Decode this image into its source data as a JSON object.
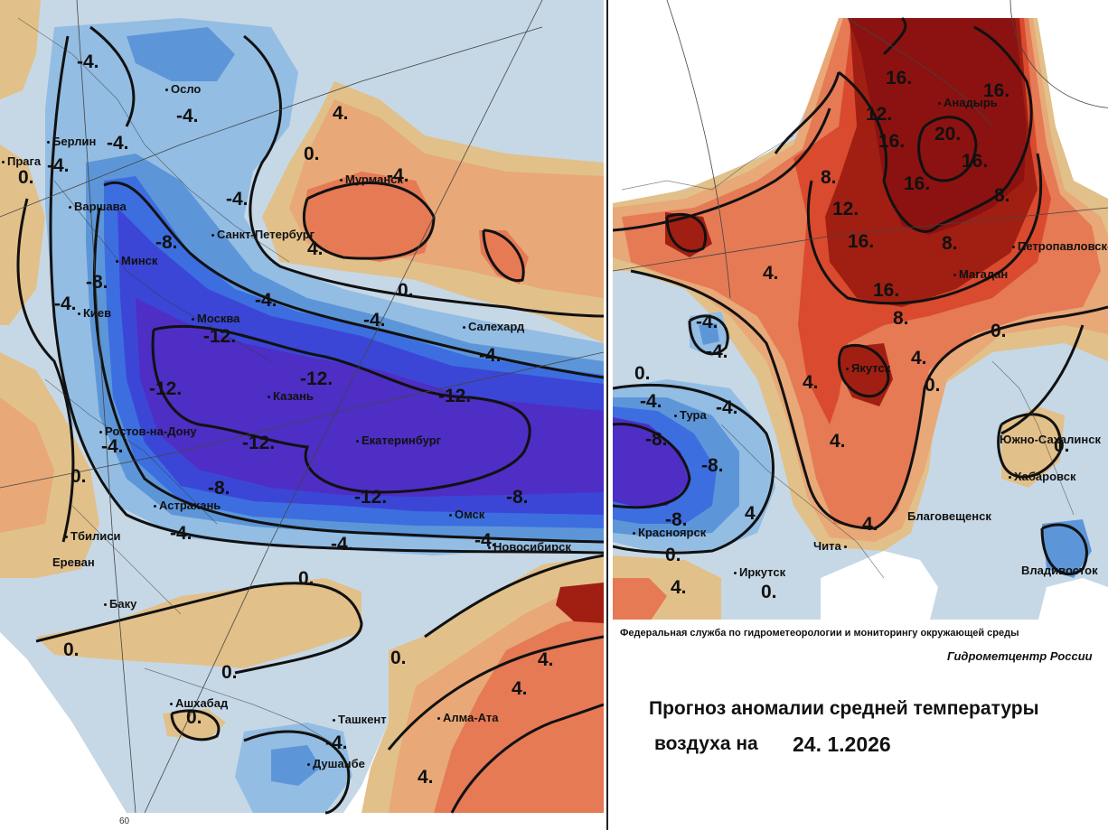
{
  "colors": {
    "neg12": "#4e2ec4",
    "neg10": "#3b46d6",
    "neg8": "#3d6ee0",
    "neg6": "#5d96d8",
    "neg4": "#93bde3",
    "neg2": "#c6d8e6",
    "pos0": "#e2c08a",
    "pos2": "#e8a877",
    "pos4": "#e57a55",
    "pos8": "#d94a2e",
    "pos12": "#a01f12",
    "pos16": "#8b1210"
  },
  "left_map": {
    "cities": [
      "Осло",
      "Берлин",
      "Прага",
      "Варшава",
      "Минск",
      "Киев",
      "Москва",
      "Санкт-Петербург",
      "Мурманск",
      "Салехард",
      "Казань",
      "Екатеринбург",
      "Ростов-на-Дону",
      "Астрахань",
      "Тбилиси",
      "Ереван",
      "Баку",
      "Омск",
      "Новосибирск",
      "Ашхабад",
      "Ташкент",
      "Душанбе",
      "Алма-Ата"
    ],
    "isolines": [
      "-4.",
      "-4.",
      "-4.",
      "-4.",
      "0.",
      "-4.",
      "-8.",
      "-8.",
      "-4.",
      "-12.",
      "-12.",
      "-12.",
      "-12.",
      "-12.",
      "-12.",
      "-8.",
      "-8.",
      "-4.",
      "-4.",
      "-4.",
      "-4.",
      "0.",
      "0.",
      "0.",
      "0.",
      "0.",
      "0.",
      "-4.",
      "4.",
      "4.",
      "4.",
      "4.",
      "0.",
      "4.",
      "0.",
      "-4.",
      "-4.",
      "-4.",
      "-4."
    ],
    "longitude_label": "60"
  },
  "right_map": {
    "cities": [
      "Анадырь",
      "Магадан",
      "Петропавловск-Камчатский",
      "Якутск",
      "Тура",
      "Красноярск",
      "Чита",
      "Иркутск",
      "Благовещенск",
      "Хабаровск",
      "Южно-Сахалинск",
      "Владивосток"
    ],
    "isolines": [
      "16.",
      "16.",
      "12.",
      "20.",
      "16.",
      "16.",
      "16.",
      "8.",
      "12.",
      "8.",
      "16.",
      "16.",
      "8.",
      "8.",
      "4.",
      "4.",
      "-8.",
      "0.",
      "-4.",
      "-4.",
      "4.",
      "0.",
      "-4.",
      "-4.",
      "-8.",
      "-8.",
      "4.",
      "4.",
      "4.",
      "0.",
      "0.",
      "4.",
      "0.",
      "0."
    ]
  },
  "footer": {
    "agency": "Федеральная служба по гидрометеорологии и мониторингу окружающей среды",
    "center": "Гидрометцентр России",
    "title_line1": "Прогноз аномалии средней температуры",
    "title_line2": "воздуха на",
    "date": "24. 1.2026"
  }
}
